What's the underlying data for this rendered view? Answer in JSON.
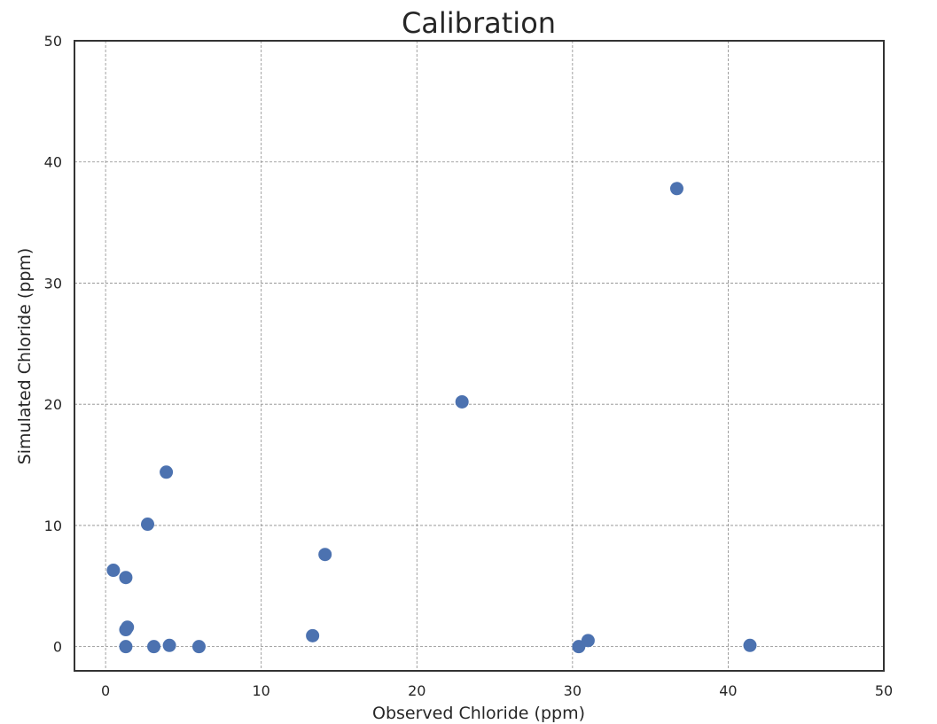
{
  "chart_data": {
    "type": "scatter",
    "title": "Calibration",
    "xlabel": "Observed Chloride (ppm)",
    "ylabel": "Simulated Chloride (ppm)",
    "xlim": [
      -2,
      50
    ],
    "ylim": [
      -2,
      50
    ],
    "xticks": [
      0,
      10,
      20,
      30,
      40,
      50
    ],
    "yticks": [
      0,
      10,
      20,
      30,
      40,
      50
    ],
    "grid": true,
    "marker_color": "#4c72b0",
    "series": [
      {
        "points": [
          {
            "x": 0.5,
            "y": 6.3
          },
          {
            "x": 1.3,
            "y": 5.7
          },
          {
            "x": 1.3,
            "y": 1.4
          },
          {
            "x": 1.4,
            "y": 1.6
          },
          {
            "x": 1.3,
            "y": 0.0
          },
          {
            "x": 2.7,
            "y": 10.1
          },
          {
            "x": 3.1,
            "y": 0.0
          },
          {
            "x": 3.9,
            "y": 14.4
          },
          {
            "x": 4.1,
            "y": 0.1
          },
          {
            "x": 6.0,
            "y": 0.0
          },
          {
            "x": 13.3,
            "y": 0.9
          },
          {
            "x": 14.1,
            "y": 7.6
          },
          {
            "x": 22.9,
            "y": 20.2
          },
          {
            "x": 30.4,
            "y": 0.0
          },
          {
            "x": 31.0,
            "y": 0.5
          },
          {
            "x": 36.7,
            "y": 37.8
          },
          {
            "x": 41.4,
            "y": 0.1
          }
        ]
      }
    ]
  }
}
